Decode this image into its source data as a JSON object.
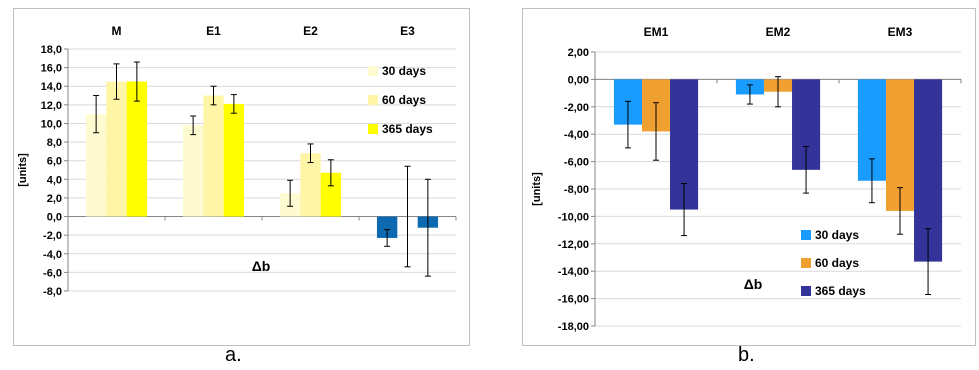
{
  "chart_data": [
    {
      "type": "bar",
      "categories": [
        "M",
        "E1",
        "E2",
        "E3"
      ],
      "ylabel": "[units]",
      "ylim": [
        -8.0,
        18.0
      ],
      "ytick_step": 2,
      "ytick_labels": [
        "18,0",
        "16,0",
        "14,0",
        "12,0",
        "10,0",
        "8,0",
        "6,0",
        "4,0",
        "2,0",
        "0,0",
        "-2,0",
        "-4,0",
        "-6,0",
        "-8,0"
      ],
      "grid": true,
      "legend_position": "right",
      "annotation": "Δb",
      "caption": "a.",
      "series": [
        {
          "name": "30 days",
          "color": "#fffbd0",
          "values": [
            11.0,
            9.8,
            2.5,
            null
          ],
          "errors": [
            2.0,
            1.0,
            1.4,
            null
          ]
        },
        {
          "name": "60 days",
          "color": "#fff5a6",
          "values": [
            14.5,
            13.0,
            6.8,
            null
          ],
          "errors": [
            1.9,
            1.0,
            1.0,
            null
          ]
        },
        {
          "name": "365 days",
          "color": "#ffff00",
          "values": [
            14.5,
            12.1,
            4.7,
            null
          ],
          "errors": [
            2.1,
            1.0,
            1.4,
            null
          ]
        }
      ],
      "extra_bars": [
        {
          "category": "E3",
          "slot": 0,
          "color": "#0e6ab0",
          "value": -2.3,
          "error_low": 0.9,
          "error_high": 0.9
        },
        {
          "category": "E3",
          "slot": 1,
          "color": "#0e6ab0",
          "value": 0.0,
          "error_low": 5.4,
          "error_high": 5.4
        },
        {
          "category": "E3",
          "slot": 2,
          "color": "#0e6ab0",
          "value": -1.2,
          "error_low": 5.2,
          "error_high": 5.2
        }
      ]
    },
    {
      "type": "bar",
      "categories": [
        "EM1",
        "EM2",
        "EM3"
      ],
      "ylabel": "[units]",
      "ylim": [
        -18.0,
        2.0
      ],
      "ytick_step": 2,
      "ytick_labels": [
        "2,00",
        "0,00",
        "-2,00",
        "-4,00",
        "-6,00",
        "-8,00",
        "-10,00",
        "-12,00",
        "-14,00",
        "-16,00",
        "-18,00"
      ],
      "grid": true,
      "legend_position": "bottom-center",
      "annotation": "Δb",
      "caption": "b.",
      "series": [
        {
          "name": "30 days",
          "color": "#1a9cff",
          "values": [
            -3.3,
            -1.1,
            -7.4
          ],
          "errors": [
            1.7,
            0.7,
            1.6
          ]
        },
        {
          "name": "60 days",
          "color": "#f0a030",
          "values": [
            -3.8,
            -0.9,
            -9.6
          ],
          "errors": [
            2.1,
            1.1,
            1.7
          ]
        },
        {
          "name": "365 days",
          "color": "#333399",
          "values": [
            -9.5,
            -6.6,
            -13.3
          ],
          "errors": [
            1.9,
            1.7,
            2.4
          ]
        }
      ]
    }
  ]
}
